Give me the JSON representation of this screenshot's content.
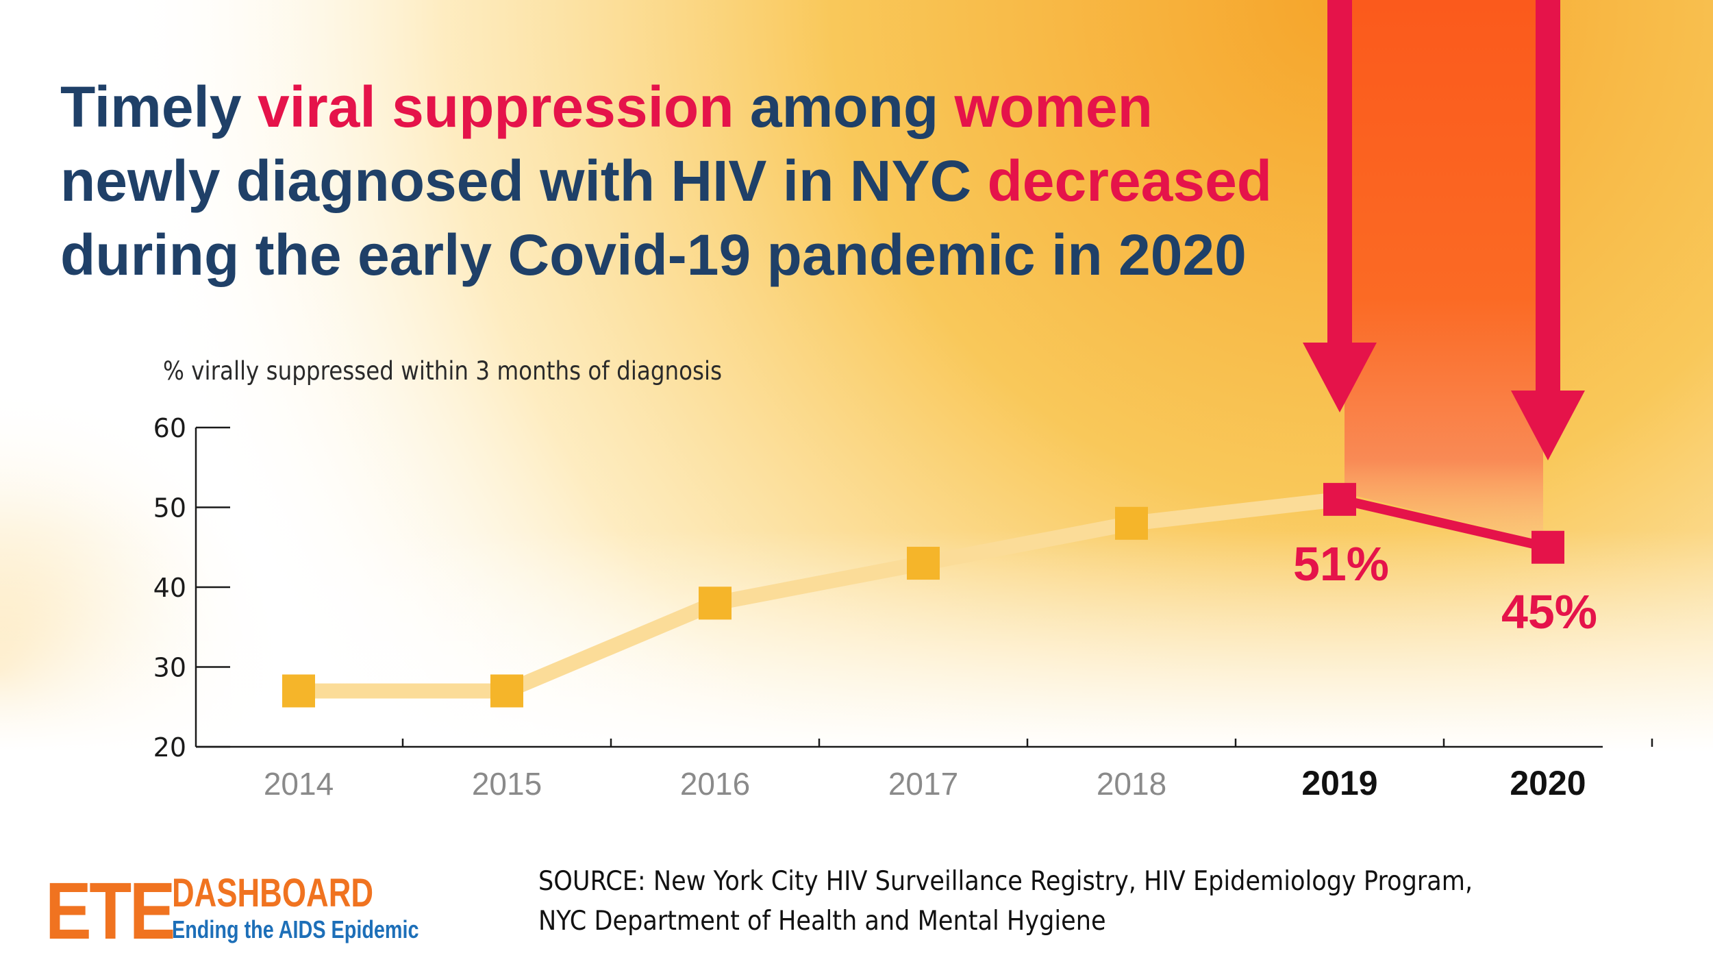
{
  "title": {
    "part1": "Timely ",
    "part2": "viral suppression",
    "part3": " among ",
    "part4": "women",
    "part5": "newly diagnosed with HIV in NYC ",
    "part6": "decreased",
    "part7": "during the early Covid-19 pandemic in 2020"
  },
  "colors": {
    "title_dark": "#1f4068",
    "highlight_red": "#e5134a",
    "marker_yellow": "#f5b52a",
    "line_light": "#fbdc98",
    "logo_orange": "#f07320",
    "logo_blue": "#1d6fb8"
  },
  "chart_data": {
    "type": "line",
    "ylabel": "% virally suppressed within 3 months of diagnosis",
    "ylim": [
      20,
      60
    ],
    "yticks": [
      20,
      30,
      40,
      50,
      60
    ],
    "categories": [
      "2014",
      "2015",
      "2016",
      "2017",
      "2018",
      "2019",
      "2020"
    ],
    "values": [
      27,
      27,
      38,
      43,
      48,
      51,
      45
    ],
    "emphasized_categories": [
      "2019",
      "2020"
    ],
    "annotations": [
      {
        "category": "2019",
        "text": "51%"
      },
      {
        "category": "2020",
        "text": "45%"
      }
    ],
    "grid": false,
    "legend": "none"
  },
  "source": "SOURCE: New York City HIV Surveillance Registry, HIV Epidemiology Program, NYC Department of Health and Mental Hygiene",
  "logo": {
    "mark": "ETE",
    "name": "DASHBOARD",
    "tagline": "Ending the AIDS Epidemic"
  }
}
